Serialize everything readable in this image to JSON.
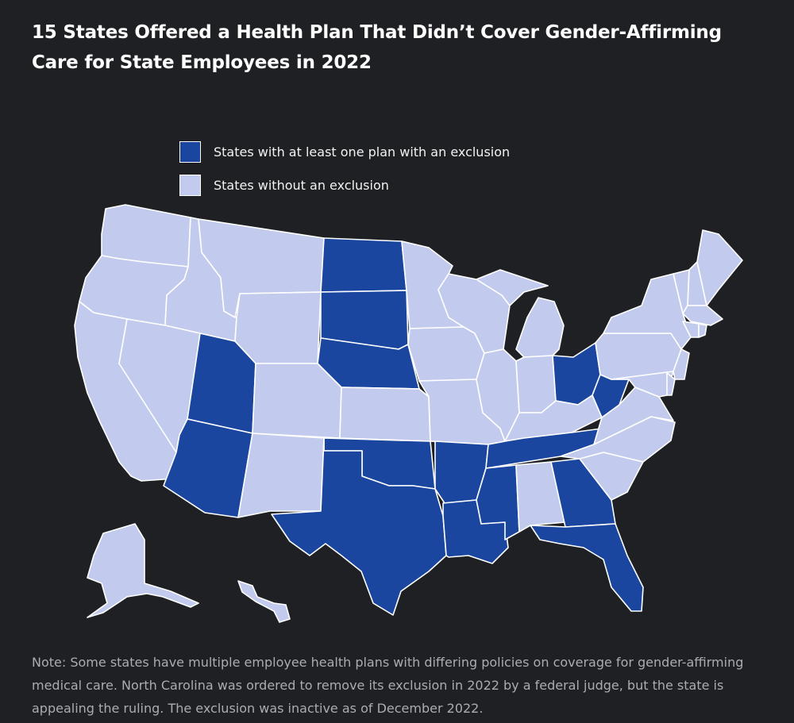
{
  "title": "15 States Offered a Health Plan That Didn’t Cover Gender-Affirming Care for State Employees in 2022",
  "legend": {
    "exclusion_label": "States with at least one plan with an exclusion",
    "no_exclusion_label": "States without an exclusion"
  },
  "colors": {
    "background": "#1e2023",
    "exclusion": "#1a46a0",
    "no_exclusion": "#c2cbee",
    "border": "#ffffff"
  },
  "states_with_exclusion": [
    "ND",
    "SD",
    "NE",
    "UT",
    "AZ",
    "TX",
    "OK",
    "AR",
    "LA",
    "MS",
    "TN",
    "GA",
    "FL",
    "OH",
    "WV"
  ],
  "note": "Note: Some states have multiple employee health plans with differing policies on coverage for gender-affirming medical care. North Carolina was ordered to remove its exclusion in 2022 by a federal judge, but the state is appealing the ruling. The exclusion was inactive as of December 2022."
}
